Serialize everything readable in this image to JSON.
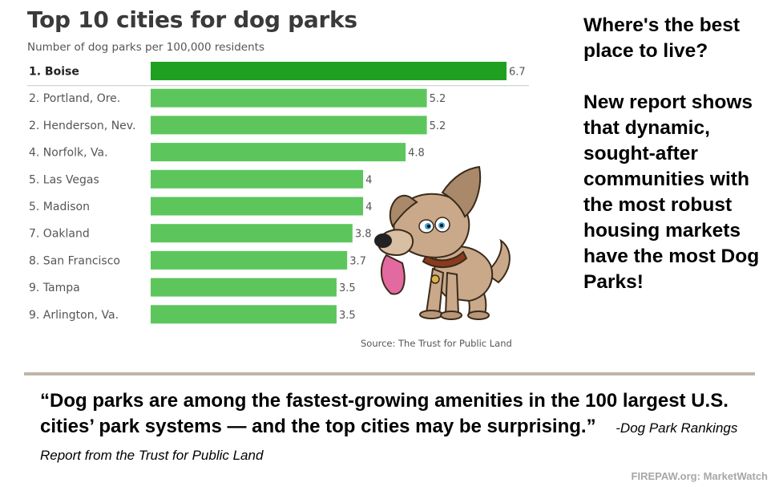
{
  "chart_data": {
    "type": "bar",
    "orientation": "horizontal",
    "title": "Top 10 cities for dog parks",
    "subtitle": "Number of dog parks per 100,000 residents",
    "categories": [
      "1. Boise",
      "2. Portland, Ore.",
      "2. Henderson, Nev.",
      "4. Norfolk, Va.",
      "5. Las Vegas",
      "5. Madison",
      "7. Oakland",
      "8. San Francisco",
      "9. Tampa",
      "9. Arlington, Va."
    ],
    "values": [
      6.7,
      5.2,
      5.2,
      4.8,
      4,
      4,
      3.8,
      3.7,
      3.5,
      3.5
    ],
    "value_labels": [
      "6.7",
      "5.2",
      "5.2",
      "4.8",
      "4",
      "4",
      "3.8",
      "3.7",
      "3.5",
      "3.5"
    ],
    "xlim": [
      0,
      6.7
    ],
    "grid": false,
    "source": "Source: The Trust for Public Land",
    "colors": {
      "top_bar": "#20a020",
      "bar": "#5cc65c"
    }
  },
  "side_panel": {
    "question": "Where's the best place to live?",
    "body": "New report shows that dynamic, sought-after communities with the most robust housing markets have the most Dog Parks!"
  },
  "quote": {
    "text": "“Dog parks are among the fastest-growing amenities in the 100 largest U.S. cities’ park systems — and the top cities may be surprising.”",
    "attribution": "-Dog Park Rankings Report from the Trust for Public Land"
  },
  "credit": "FIREPAW.org: MarketWatch",
  "illustration": {
    "icon": "cartoon-dog-icon"
  }
}
